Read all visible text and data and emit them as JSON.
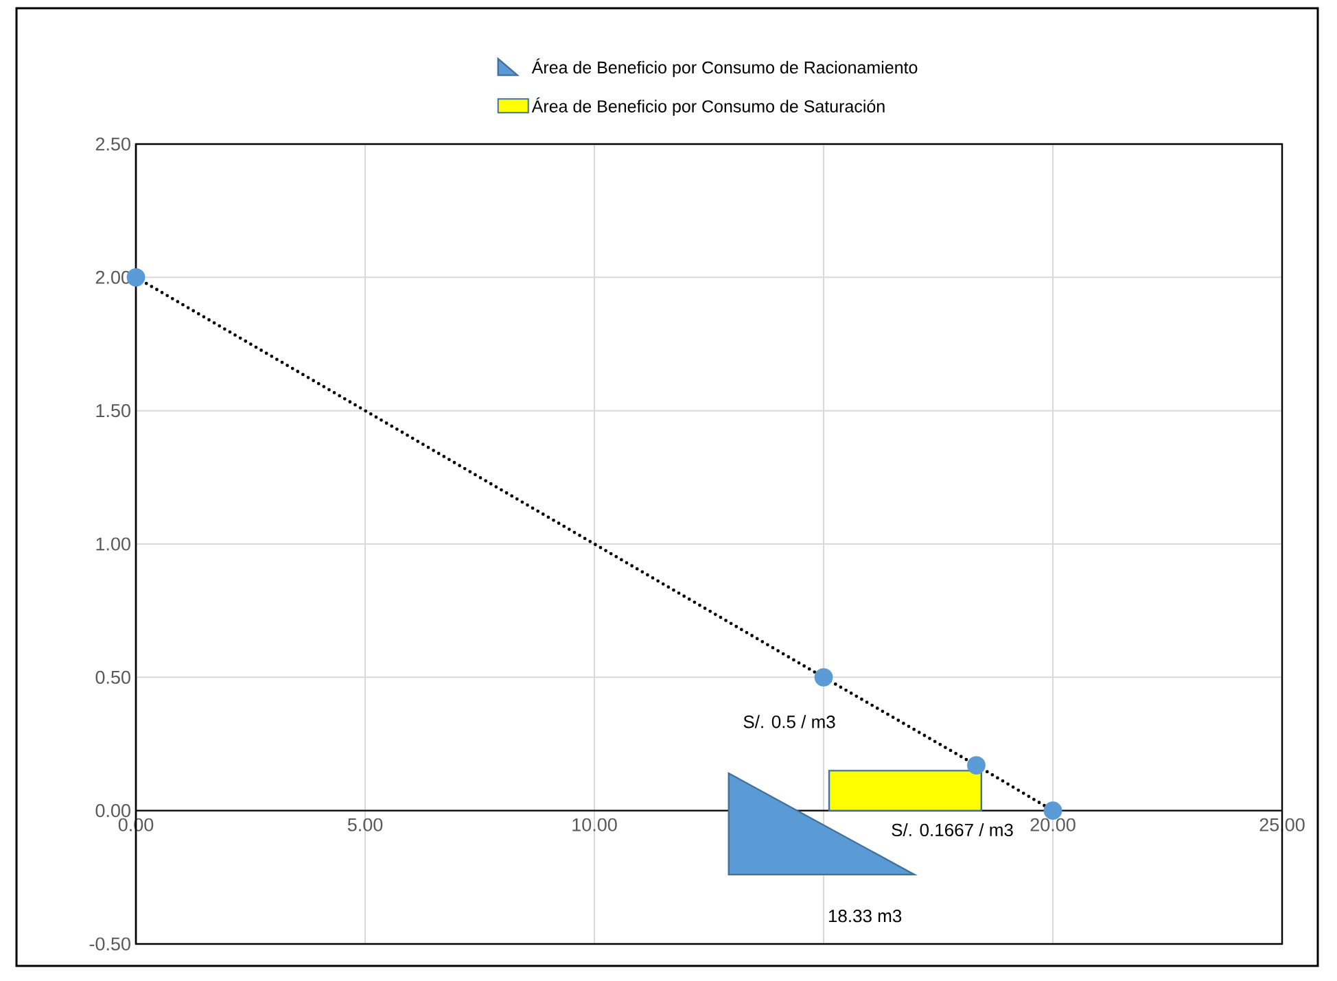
{
  "chart_data": {
    "type": "line",
    "xlim": [
      0,
      25
    ],
    "xticks": [
      {
        "value": 0,
        "label": "0.00"
      },
      {
        "value": 5,
        "label": "5.00"
      },
      {
        "value": 10,
        "label": "10.00"
      },
      {
        "value": 15,
        "label": null
      },
      {
        "value": 20,
        "label": "20.00"
      },
      {
        "value": 25,
        "label": "25.00"
      }
    ],
    "ylim": [
      -0.5,
      2.5
    ],
    "yticks": [
      {
        "value": -0.5,
        "label": "-0.50"
      },
      {
        "value": 0,
        "label": "0.00"
      },
      {
        "value": 0.5,
        "label": "0.50"
      },
      {
        "value": 1,
        "label": "1.00"
      },
      {
        "value": 1.5,
        "label": "1.50"
      },
      {
        "value": 2,
        "label": "2.00"
      },
      {
        "value": 2.5,
        "label": "2.50"
      }
    ],
    "grid": true,
    "legend": "top",
    "line_style": "dotted",
    "series": [
      {
        "color": "#5b9bd5",
        "marker": "circle",
        "x": [
          0,
          15,
          18.33,
          20
        ],
        "values": [
          2,
          0.5,
          0.17,
          0
        ]
      },
      {
        "type": "area",
        "name": "Área de Beneficio por Consumo de Racionamiento",
        "color": "#5b9bd5",
        "x": [
          12.93,
          12.93,
          16.98
        ],
        "values": [
          0.14,
          -0.24,
          -0.24
        ]
      },
      {
        "type": "area",
        "name": "Área de Beneficio por Consumo de Saturación",
        "color": "#ffff00",
        "x": [
          15.12,
          15.12,
          18.44,
          18.44
        ],
        "values": [
          0,
          0.15,
          0.15,
          0
        ]
      }
    ],
    "annotations": [
      {
        "text": "S/. 0.5 / m3",
        "x": 15,
        "y": 0.5
      },
      "S/. 0.1667 / m3",
      "18.33 m3"
    ]
  }
}
